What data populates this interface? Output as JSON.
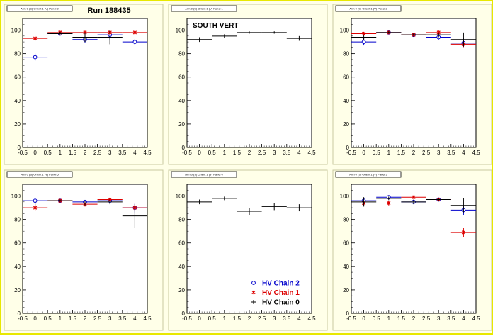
{
  "page": {
    "run_label": "Run 188435",
    "location_label": "SOUTH VERT"
  },
  "legend": {
    "entries": [
      {
        "label": "HV Chain 2",
        "color": "#0000cc",
        "marker": "circle"
      },
      {
        "label": "HV Chain 1",
        "color": "#dd0000",
        "marker": "star"
      },
      {
        "label": "HV Chain 0",
        "color": "#000000",
        "marker": "cross"
      }
    ]
  },
  "chart_data": [
    {
      "type": "scatter",
      "title": "Arm 0 (S) Orient 1 (V) Panel 0",
      "xlim": [
        -0.5,
        4.5
      ],
      "ylim": [
        0,
        110
      ],
      "xticks": [
        "-0.5",
        "0",
        "0.5",
        "1",
        "1.5",
        "2",
        "2.5",
        "3",
        "3.5",
        "4",
        "4.5"
      ],
      "yticks": [
        "0",
        "20",
        "40",
        "60",
        "80",
        "100"
      ],
      "series": [
        {
          "name": "HV Chain 2",
          "x": [
            0,
            1,
            2,
            3,
            4
          ],
          "y": [
            77,
            97,
            92,
            96,
            90
          ],
          "yerr": [
            3,
            1.5,
            3,
            4,
            2.5
          ],
          "color": "#0000cc",
          "marker": "circle"
        },
        {
          "name": "HV Chain 1",
          "x": [
            0,
            1,
            2,
            3,
            4
          ],
          "y": [
            93,
            98,
            98,
            98,
            98
          ],
          "yerr": [
            2,
            1,
            1.5,
            1.5,
            1.5
          ],
          "color": "#dd0000",
          "marker": "star"
        },
        {
          "name": "HV Chain 0",
          "x": [
            1,
            2,
            3
          ],
          "y": [
            97,
            94,
            94
          ],
          "yerr": [
            1.5,
            4,
            6
          ],
          "color": "#000000",
          "marker": "cross"
        }
      ]
    },
    {
      "type": "scatter",
      "title": "Arm 0 (S) Orient 1 (V) Panel 1",
      "xlim": [
        -0.5,
        4.5
      ],
      "ylim": [
        0,
        110
      ],
      "xticks": [
        "-0.5",
        "0",
        "0.5",
        "1",
        "1.5",
        "2",
        "2.5",
        "3",
        "3.5",
        "4",
        "4.5"
      ],
      "yticks": [
        "0",
        "20",
        "40",
        "60",
        "80",
        "100"
      ],
      "series": [
        {
          "name": "HV Chain 0",
          "x": [
            0,
            1,
            2,
            3,
            4
          ],
          "y": [
            92,
            95,
            98,
            98,
            93
          ],
          "yerr": [
            2,
            1.5,
            1,
            1,
            2
          ],
          "color": "#000000",
          "marker": "cross"
        }
      ]
    },
    {
      "type": "scatter",
      "title": "Arm 0 (S) Orient 1 (V) Panel 2",
      "xlim": [
        -0.5,
        4.5
      ],
      "ylim": [
        0,
        110
      ],
      "xticks": [
        "-0.5",
        "0",
        "0.5",
        "1",
        "1.5",
        "2",
        "2.5",
        "3",
        "3.5",
        "4",
        "4.5"
      ],
      "yticks": [
        "0",
        "20",
        "40",
        "60",
        "80",
        "100"
      ],
      "series": [
        {
          "name": "HV Chain 2",
          "x": [
            0,
            1,
            2,
            3,
            4
          ],
          "y": [
            90,
            98,
            96,
            94,
            89
          ],
          "yerr": [
            3,
            1.5,
            1.5,
            2,
            4
          ],
          "color": "#0000cc",
          "marker": "circle"
        },
        {
          "name": "HV Chain 1",
          "x": [
            0,
            1,
            2,
            3,
            4
          ],
          "y": [
            97,
            98,
            96,
            98,
            88
          ],
          "yerr": [
            1.5,
            1,
            1.5,
            1.5,
            3
          ],
          "color": "#dd0000",
          "marker": "star"
        },
        {
          "name": "HV Chain 0",
          "x": [
            0,
            1,
            2,
            3,
            4
          ],
          "y": [
            94,
            98,
            96,
            96,
            92
          ],
          "yerr": [
            2,
            1,
            1.5,
            2,
            6
          ],
          "color": "#000000",
          "marker": "cross"
        }
      ]
    },
    {
      "type": "scatter",
      "title": "Arm 0 (S) Orient 1 (V) Panel 5",
      "xlim": [
        -0.5,
        4.5
      ],
      "ylim": [
        0,
        110
      ],
      "xticks": [
        "-0.5",
        "0",
        "0.5",
        "1",
        "1.5",
        "2",
        "2.5",
        "3",
        "3.5",
        "4",
        "4.5"
      ],
      "yticks": [
        "0",
        "20",
        "40",
        "60",
        "80",
        "100"
      ],
      "series": [
        {
          "name": "HV Chain 2",
          "x": [
            0,
            1,
            2,
            3,
            4
          ],
          "y": [
            96,
            96,
            95,
            96,
            90
          ],
          "yerr": [
            1.5,
            1.5,
            1.5,
            1.5,
            4
          ],
          "color": "#0000cc",
          "marker": "circle"
        },
        {
          "name": "HV Chain 1",
          "x": [
            0,
            1,
            2,
            3,
            4
          ],
          "y": [
            90,
            96,
            93,
            97,
            90
          ],
          "yerr": [
            3,
            1.5,
            2,
            1.5,
            3
          ],
          "color": "#dd0000",
          "marker": "star"
        },
        {
          "name": "HV Chain 0",
          "x": [
            0,
            1,
            2,
            3,
            4
          ],
          "y": [
            94,
            96,
            94,
            95,
            83
          ],
          "yerr": [
            2,
            1,
            2,
            2,
            10
          ],
          "color": "#000000",
          "marker": "cross"
        }
      ]
    },
    {
      "type": "scatter",
      "title": "Arm 0 (S) Orient 1 (V) Panel 4",
      "xlim": [
        -0.5,
        4.5
      ],
      "ylim": [
        0,
        110
      ],
      "xticks": [
        "-0.5",
        "0",
        "0.5",
        "1",
        "1.5",
        "2",
        "2.5",
        "3",
        "3.5",
        "4",
        "4.5"
      ],
      "yticks": [
        "0",
        "20",
        "40",
        "60",
        "80",
        "100"
      ],
      "series": [
        {
          "name": "HV Chain 0",
          "x": [
            0,
            1,
            2,
            3,
            4
          ],
          "y": [
            95,
            98,
            87,
            91,
            90
          ],
          "yerr": [
            2,
            1.5,
            3,
            3,
            3
          ],
          "color": "#000000",
          "marker": "cross"
        }
      ]
    },
    {
      "type": "scatter",
      "title": "Arm 0 (S) Orient 1 (V) Panel 3",
      "xlim": [
        -0.5,
        4.5
      ],
      "ylim": [
        0,
        110
      ],
      "xticks": [
        "-0.5",
        "0",
        "0.5",
        "1",
        "1.5",
        "2",
        "2.5",
        "3",
        "3.5",
        "4",
        "4.5"
      ],
      "yticks": [
        "0",
        "20",
        "40",
        "60",
        "80",
        "100"
      ],
      "series": [
        {
          "name": "HV Chain 2",
          "x": [
            0,
            1,
            2,
            3,
            4
          ],
          "y": [
            96,
            99,
            95,
            97,
            88
          ],
          "yerr": [
            2,
            1,
            1.5,
            1.5,
            4
          ],
          "color": "#0000cc",
          "marker": "circle"
        },
        {
          "name": "HV Chain 1",
          "x": [
            0,
            1,
            2,
            3,
            4
          ],
          "y": [
            94,
            94,
            99,
            97,
            69
          ],
          "yerr": [
            2,
            2,
            1,
            1.5,
            4
          ],
          "color": "#dd0000",
          "marker": "star"
        },
        {
          "name": "HV Chain 0",
          "x": [
            0,
            1,
            2,
            3,
            4
          ],
          "y": [
            95,
            98,
            95,
            97,
            92
          ],
          "yerr": [
            4,
            1.5,
            2,
            1.5,
            6
          ],
          "color": "#000000",
          "marker": "cross"
        }
      ]
    }
  ]
}
